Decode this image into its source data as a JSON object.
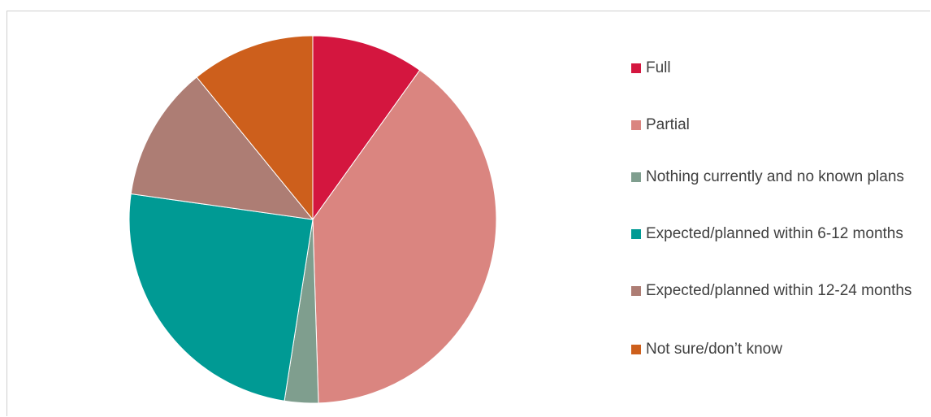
{
  "chart_data": {
    "type": "pie",
    "categories": [
      "Full",
      "Partial",
      "Nothing currently and no known plans",
      "Expected/planned within 6-12 months",
      "Expected/planned within 12-24 months",
      "Not sure/don’t know"
    ],
    "values": [
      10,
      40,
      3,
      25,
      12,
      11
    ],
    "colors": [
      "#d4163f",
      "#da8580",
      "#7f9e8e",
      "#009a94",
      "#ad7d74",
      "#cd5f1c"
    ],
    "legend": "right"
  }
}
